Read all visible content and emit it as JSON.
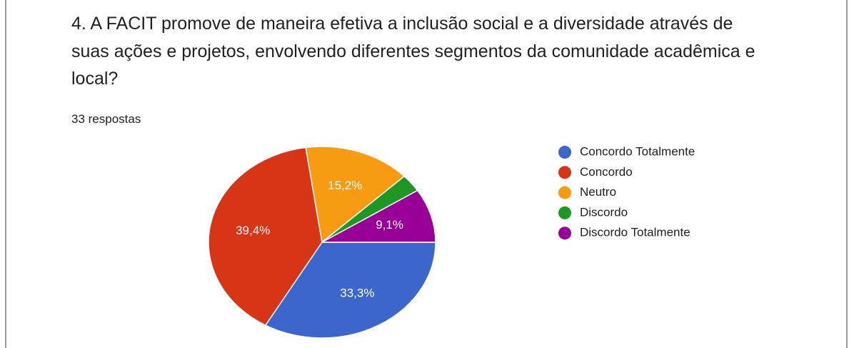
{
  "chart_data": {
    "type": "pie",
    "title": "4. A FACIT promove de maneira efetiva a inclusão social e a diversidade através de suas ações e projetos, envolvendo diferentes segmentos da comunidade acadêmica e local?",
    "subtitle": "33 respostas",
    "categories": [
      "Concordo Totalmente",
      "Concordo",
      "Neutro",
      "Discordo",
      "Discordo Totalmente"
    ],
    "values": [
      33.3,
      39.4,
      15.2,
      3.0,
      9.1
    ],
    "value_labels": [
      "33,3%",
      "39,4%",
      "15,2%",
      null,
      "9,1%"
    ],
    "colors": [
      "#3c66cc",
      "#d83516",
      "#f69b12",
      "#1e9822",
      "#980098"
    ],
    "legend": "right"
  }
}
